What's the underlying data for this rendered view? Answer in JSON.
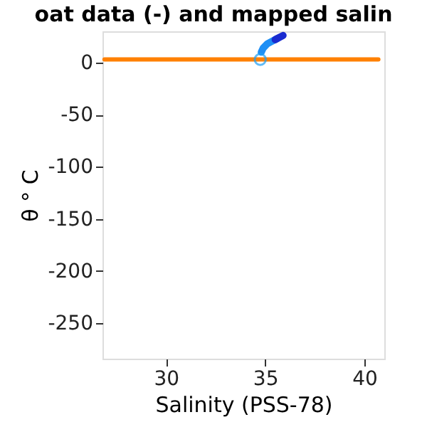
{
  "chart_data": {
    "type": "line",
    "title": "oat data (-) and mapped salin",
    "xlabel": "Salinity (PSS-78)",
    "ylabel": "θ ° C",
    "xlim": [
      26.8,
      41
    ],
    "xticks": [
      30,
      35,
      40
    ],
    "ylim": [
      -284,
      30
    ],
    "yticks": [
      0,
      -50,
      -100,
      -150,
      -200,
      -250
    ],
    "grid": false,
    "line_style": "solid",
    "series": [
      {
        "color": "#ff8000",
        "x": [
          26.9,
          40.7
        ],
        "values": [
          3,
          3
        ]
      },
      {
        "color": "#1e8ff5",
        "x": [
          34.8,
          34.9,
          35.1,
          35.4,
          35.6
        ],
        "values": [
          10,
          14,
          18,
          21,
          23
        ]
      },
      {
        "color": "#1a2bd0",
        "x": [
          35.5,
          35.7,
          35.9
        ],
        "values": [
          22,
          24,
          26
        ]
      },
      {
        "type": "scatter",
        "marker": "circle",
        "color": "#1e9ff5",
        "x": [
          34.75
        ],
        "values": [
          3
        ]
      }
    ]
  }
}
